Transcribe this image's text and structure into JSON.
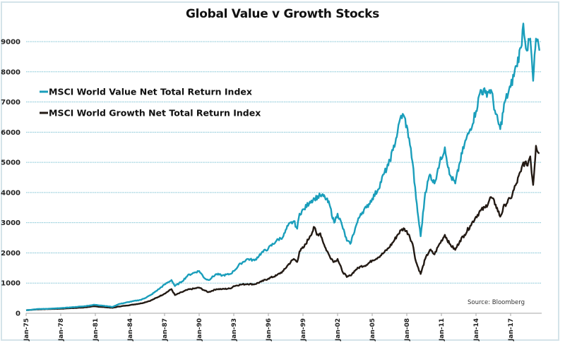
{
  "chart_data": {
    "type": "line",
    "title": "Global Value v Growth Stocks",
    "xlabel": "",
    "ylabel": "",
    "ylim": [
      0,
      9000
    ],
    "xlim": [
      1975.0,
      2019.5
    ],
    "grid": true,
    "y_ticks": [
      0,
      1000,
      2000,
      3000,
      4000,
      5000,
      6000,
      7000,
      8000,
      9000
    ],
    "x_ticks": [
      {
        "label": "Jan-75",
        "year": 1975
      },
      {
        "label": "Jan-78",
        "year": 1978
      },
      {
        "label": "Jan-81",
        "year": 1981
      },
      {
        "label": "Jan-84",
        "year": 1984
      },
      {
        "label": "Jan-87",
        "year": 1987
      },
      {
        "label": "Jan-90",
        "year": 1990
      },
      {
        "label": "Jan-93",
        "year": 1993
      },
      {
        "label": "Jan-96",
        "year": 1996
      },
      {
        "label": "Jan-99",
        "year": 1999
      },
      {
        "label": "Jan-02",
        "year": 2002
      },
      {
        "label": "Jan-05",
        "year": 2005
      },
      {
        "label": "Jan-08",
        "year": 2008
      },
      {
        "label": "Jan-11",
        "year": 2011
      },
      {
        "label": "Jan-14",
        "year": 2014
      },
      {
        "label": "Jan-17",
        "year": 2017
      }
    ],
    "legend_position": "upper-left",
    "annotation": "Source: Bloomberg",
    "series": [
      {
        "name": "MSCI World Value Net Total Return Index",
        "color": "#1a9ebb",
        "x": [
          1975.0,
          1976.0,
          1977.0,
          1978.0,
          1979.0,
          1980.0,
          1980.9,
          1981.5,
          1982.5,
          1983.0,
          1984.0,
          1985.0,
          1985.8,
          1986.5,
          1987.0,
          1987.6,
          1987.9,
          1988.5,
          1989.0,
          1989.6,
          1990.0,
          1990.5,
          1990.8,
          1991.5,
          1992.0,
          1992.7,
          1993.0,
          1993.6,
          1994.2,
          1994.8,
          1995.4,
          1996.0,
          1996.7,
          1997.3,
          1997.7,
          1998.2,
          1998.5,
          1998.7,
          1999.1,
          1999.6,
          2000.0,
          2000.5,
          2000.9,
          2001.3,
          2001.7,
          2002.0,
          2002.4,
          2002.8,
          2003.1,
          2003.6,
          2004.0,
          2004.5,
          2005.0,
          2005.5,
          2006.0,
          2006.4,
          2006.8,
          2007.2,
          2007.5,
          2007.8,
          2008.2,
          2008.5,
          2008.8,
          2009.2,
          2009.6,
          2010.0,
          2010.4,
          2010.7,
          2011.3,
          2011.7,
          2012.2,
          2012.6,
          2013.0,
          2013.5,
          2014.0,
          2014.4,
          2014.8,
          2015.3,
          2015.7,
          2016.1,
          2016.5,
          2017.0,
          2017.5,
          2017.9,
          2018.1,
          2018.4,
          2018.7,
          2018.95,
          2019.2,
          2019.5
        ],
        "values": [
          100,
          140,
          150,
          170,
          200,
          230,
          280,
          260,
          210,
          300,
          380,
          450,
          600,
          800,
          950,
          1100,
          900,
          1050,
          1250,
          1350,
          1400,
          1150,
          1100,
          1300,
          1250,
          1300,
          1400,
          1650,
          1800,
          1750,
          2000,
          2150,
          2400,
          2550,
          2900,
          3050,
          2800,
          3300,
          3450,
          3700,
          3800,
          3900,
          3850,
          3600,
          3000,
          3300,
          2900,
          2400,
          2300,
          2900,
          3300,
          3500,
          3800,
          4100,
          4600,
          4900,
          5400,
          6000,
          6550,
          6500,
          5800,
          5000,
          3800,
          2550,
          4000,
          4600,
          4300,
          4800,
          5500,
          4600,
          4300,
          5000,
          5600,
          6100,
          6700,
          7400,
          7300,
          7400,
          6600,
          6100,
          7000,
          7500,
          8200,
          8800,
          9600,
          8700,
          9100,
          7700,
          9100,
          8700
        ]
      },
      {
        "name": "MSCI World Growth Net Total Return Index",
        "color": "#231a14",
        "x": [
          1975.0,
          1976.0,
          1977.0,
          1978.0,
          1979.0,
          1980.0,
          1980.9,
          1981.5,
          1982.5,
          1983.0,
          1984.0,
          1985.0,
          1985.8,
          1986.5,
          1987.0,
          1987.6,
          1987.9,
          1988.5,
          1989.0,
          1989.6,
          1990.0,
          1990.5,
          1990.8,
          1991.5,
          1992.0,
          1992.7,
          1993.0,
          1993.6,
          1994.2,
          1994.8,
          1995.4,
          1996.0,
          1996.7,
          1997.3,
          1997.7,
          1998.2,
          1998.5,
          1998.7,
          1999.1,
          1999.6,
          2000.0,
          2000.2,
          2000.5,
          2000.9,
          2001.3,
          2001.7,
          2002.0,
          2002.4,
          2002.8,
          2003.1,
          2003.6,
          2004.0,
          2004.5,
          2005.0,
          2005.5,
          2006.0,
          2006.4,
          2006.8,
          2007.2,
          2007.5,
          2007.8,
          2008.2,
          2008.5,
          2008.8,
          2009.2,
          2009.6,
          2010.0,
          2010.4,
          2010.7,
          2011.3,
          2011.7,
          2012.2,
          2012.6,
          2013.0,
          2013.5,
          2014.0,
          2014.4,
          2014.8,
          2015.3,
          2015.7,
          2016.1,
          2016.5,
          2017.0,
          2017.5,
          2017.9,
          2018.1,
          2018.4,
          2018.7,
          2018.95,
          2019.2,
          2019.5
        ],
        "values": [
          100,
          130,
          140,
          150,
          170,
          190,
          230,
          210,
          180,
          220,
          270,
          330,
          420,
          550,
          650,
          800,
          600,
          700,
          780,
          820,
          850,
          750,
          700,
          800,
          800,
          820,
          900,
          950,
          970,
          960,
          1050,
          1150,
          1250,
          1400,
          1600,
          1800,
          1700,
          2050,
          2200,
          2550,
          2850,
          2600,
          2650,
          2200,
          1900,
          1700,
          1800,
          1400,
          1200,
          1250,
          1450,
          1550,
          1600,
          1750,
          1850,
          2000,
          2150,
          2350,
          2600,
          2750,
          2800,
          2600,
          2300,
          1700,
          1300,
          1800,
          2100,
          1950,
          2200,
          2600,
          2300,
          2100,
          2400,
          2600,
          2900,
          3200,
          3400,
          3500,
          3850,
          3600,
          3200,
          3600,
          3800,
          4300,
          4700,
          5000,
          4900,
          5200,
          4250,
          5550,
          5300
        ]
      }
    ]
  }
}
